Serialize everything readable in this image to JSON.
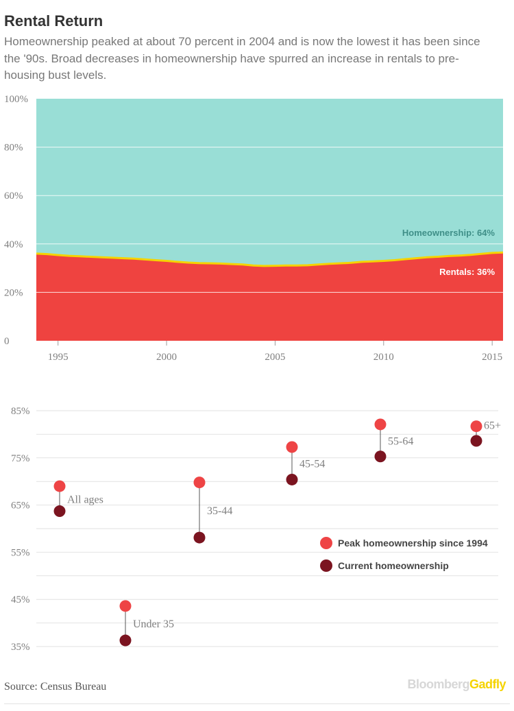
{
  "title": "Rental Return",
  "subtitle": "Homeownership peaked at about 70 percent in 2004 and is now the lowest it has been since the '90s. Broad decreases in homeownership have spurred an increase in rentals to pre-housing bust levels.",
  "source": "Source: Census Bureau",
  "brand": {
    "part1": "Bloomberg",
    "part2": "Gadfly"
  },
  "colors": {
    "homeownership": "#99ded6",
    "rentals": "#ef4340",
    "divider": "#f5d300",
    "peak": "#ee4445",
    "current": "#7b1420",
    "homeownership_label": "#3f8f88"
  },
  "chart_data": [
    {
      "type": "area",
      "stacked": true,
      "y_unit": "percent",
      "ylim": [
        0,
        100
      ],
      "y_ticks": [
        {
          "value": 0,
          "label": "0"
        },
        {
          "value": 20,
          "label": "20%"
        },
        {
          "value": 40,
          "label": "40%"
        },
        {
          "value": 60,
          "label": "60%"
        },
        {
          "value": 80,
          "label": "80%"
        },
        {
          "value": 100,
          "label": "100%"
        }
      ],
      "xlim": [
        1994,
        2015.5
      ],
      "x_ticks": [
        {
          "value": 1995,
          "label": "1995"
        },
        {
          "value": 2000,
          "label": "2000"
        },
        {
          "value": 2005,
          "label": "2005"
        },
        {
          "value": 2010,
          "label": "2010"
        },
        {
          "value": 2015,
          "label": "2015"
        }
      ],
      "grid": true,
      "x": [
        1994,
        1994.5,
        1995,
        1995.5,
        1996,
        1996.5,
        1997,
        1997.5,
        1998,
        1998.5,
        1999,
        1999.5,
        2000,
        2000.5,
        2001,
        2001.5,
        2002,
        2002.5,
        2003,
        2003.5,
        2004,
        2004.5,
        2005,
        2005.5,
        2006,
        2006.5,
        2007,
        2007.5,
        2008,
        2008.5,
        2009,
        2009.5,
        2010,
        2010.5,
        2011,
        2011.5,
        2012,
        2012.5,
        2013,
        2013.5,
        2014,
        2014.5,
        2015,
        2015.5
      ],
      "series": [
        {
          "key": "rentals",
          "values": [
            36.0,
            35.8,
            35.4,
            35.1,
            34.9,
            34.7,
            34.5,
            34.3,
            34.1,
            33.9,
            33.6,
            33.3,
            33.0,
            32.6,
            32.3,
            32.1,
            32.0,
            31.9,
            31.7,
            31.5,
            31.1,
            30.9,
            31.0,
            31.1,
            31.1,
            31.2,
            31.5,
            31.8,
            32.0,
            32.2,
            32.6,
            32.8,
            33.0,
            33.3,
            33.7,
            34.1,
            34.5,
            34.7,
            35.0,
            35.2,
            35.5,
            35.9,
            36.3,
            36.5
          ]
        },
        {
          "key": "homeownership"
        }
      ],
      "annotations": [
        {
          "series": "homeownership",
          "text": "Homeownership: 64%"
        },
        {
          "series": "rentals",
          "text": "Rentals: 36%"
        }
      ]
    },
    {
      "type": "dumbbell",
      "y_unit": "percent",
      "ylim": [
        35,
        85
      ],
      "y_ticks": [
        {
          "value": 35,
          "label": "35%"
        },
        {
          "value": 45,
          "label": "45%"
        },
        {
          "value": 55,
          "label": "55%"
        },
        {
          "value": 65,
          "label": "65%"
        },
        {
          "value": 75,
          "label": "75%"
        },
        {
          "value": 85,
          "label": "85%"
        }
      ],
      "grid": true,
      "legend_position": "right",
      "series": [
        {
          "key": "peak",
          "name": "Peak homeownership since 1994"
        },
        {
          "key": "current",
          "name": "Current homeownership"
        }
      ],
      "groups": [
        {
          "label": "All ages",
          "peak": 69.0,
          "current": 63.7
        },
        {
          "label": "Under 35",
          "peak": 43.6,
          "current": 36.3
        },
        {
          "label": "35-44",
          "peak": 69.8,
          "current": 58.1
        },
        {
          "label": "45-54",
          "peak": 77.3,
          "current": 70.4
        },
        {
          "label": "55-64",
          "peak": 82.1,
          "current": 75.3
        },
        {
          "label": "65+",
          "peak": 81.7,
          "current": 78.6
        }
      ]
    }
  ]
}
